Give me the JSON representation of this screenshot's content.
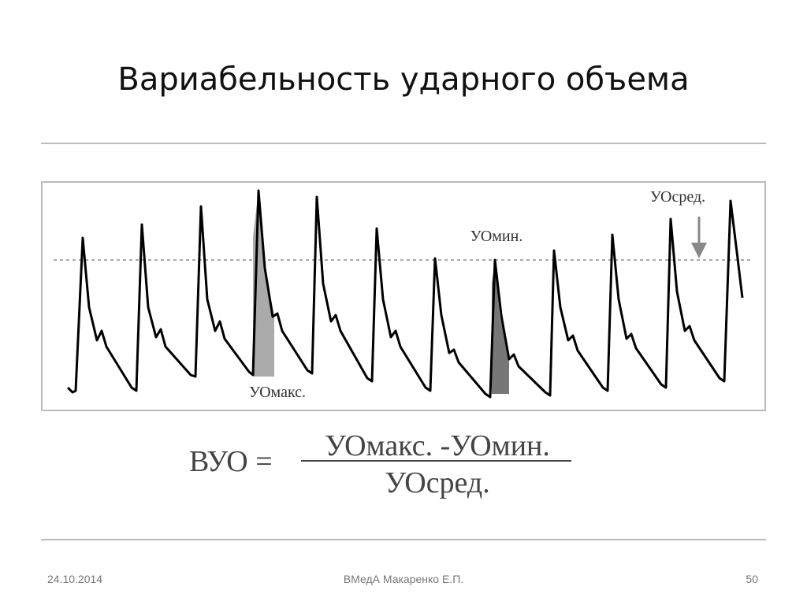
{
  "title": "Вариабельность ударного объема",
  "figure": {
    "labels": {
      "mean": "УОсред.",
      "min": "УОмин.",
      "max": "УОмакс."
    }
  },
  "formula": {
    "lhs": "ВУО =",
    "numerator": "УОмакс. -УОмин.",
    "denominator": "УОсред."
  },
  "footer": {
    "date": "24.10.2014",
    "author": "ВМедА Макаренко Е.П.",
    "page": "50"
  }
}
